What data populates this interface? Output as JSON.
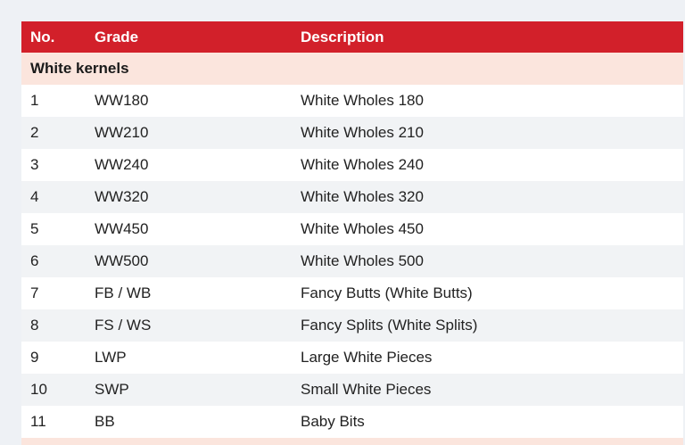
{
  "table": {
    "headers": [
      "No.",
      "Grade",
      "Description"
    ],
    "section": "White kernels",
    "rows": [
      [
        "1",
        "WW180",
        "White Wholes 180"
      ],
      [
        "2",
        "WW210",
        "White Wholes 210"
      ],
      [
        "3",
        "WW240",
        "White Wholes 240"
      ],
      [
        "4",
        "WW320",
        "White Wholes 320"
      ],
      [
        "5",
        "WW450",
        "White Wholes 450"
      ],
      [
        "6",
        "WW500",
        "White Wholes 500"
      ],
      [
        "7",
        "FB / WB",
        "Fancy Butts (White Butts)"
      ],
      [
        "8",
        "FS / WS",
        "Fancy Splits (White Splits)"
      ],
      [
        "9",
        "LWP",
        "Large White Pieces"
      ],
      [
        "10",
        "SWP",
        "Small White Pieces"
      ],
      [
        "11",
        "BB",
        "Baby Bits"
      ]
    ]
  },
  "colors": {
    "header": "#d2202a",
    "section": "#fbe5dd",
    "stripe": "#f1f3f5"
  }
}
